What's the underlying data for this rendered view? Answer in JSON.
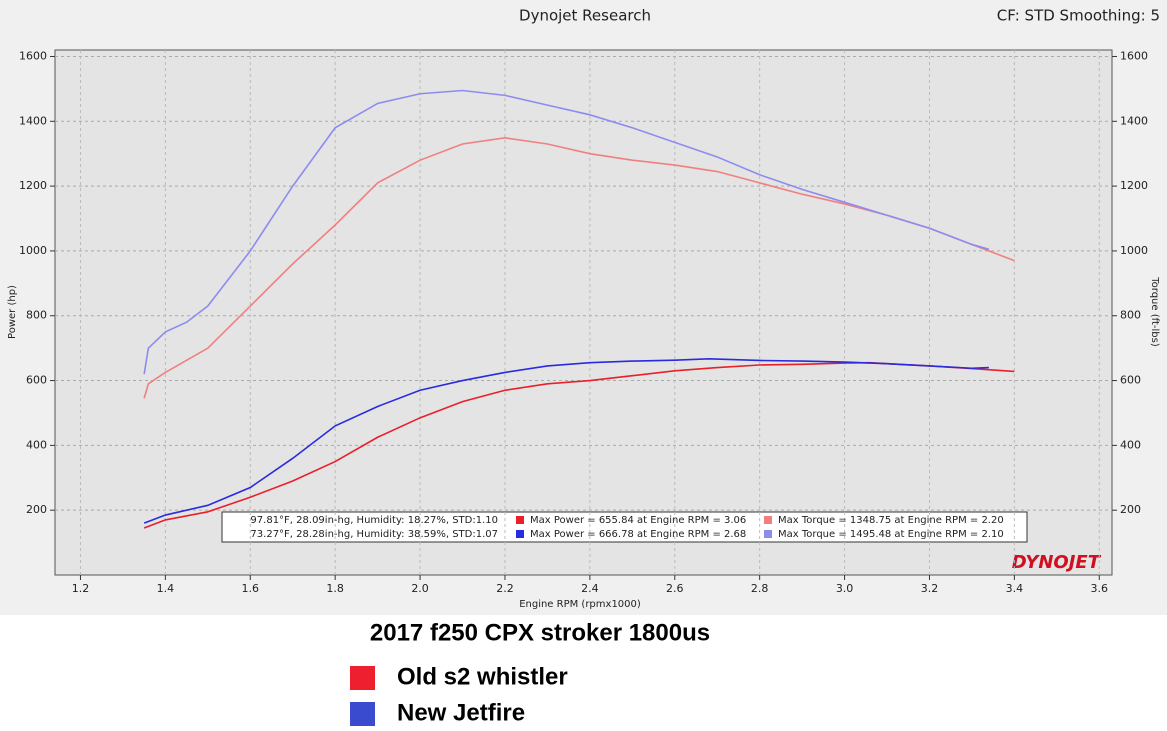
{
  "chart_data": {
    "type": "line",
    "title": "Dynojet Research",
    "subtitle": "CF: STD Smoothing: 5",
    "xlabel": "Engine RPM (rpmx1000)",
    "ylabel": "Power (hp)",
    "y2label": "Torque (ft-lbs)",
    "logo": "DYNOJET",
    "xlim": [
      1.14,
      3.63
    ],
    "xticks": [
      1.2,
      1.4,
      1.6,
      1.8,
      {
        "value": 2,
        "label": "2.0"
      },
      2.2,
      2.4,
      2.6,
      2.8,
      {
        "value": 3,
        "label": "3.0"
      },
      3.2,
      3.4,
      3.6
    ],
    "ylim": [
      0,
      1620
    ],
    "yticks": [
      200,
      400,
      600,
      800,
      1000,
      1200,
      1400,
      1600
    ],
    "y2lim": [
      0,
      1620
    ],
    "y2ticks": [
      200,
      400,
      600,
      800,
      1000,
      1200,
      1400,
      1600
    ],
    "grid": true,
    "series": [
      {
        "color": "#e8202a",
        "x": [
          1.35,
          1.4,
          1.5,
          1.6,
          1.7,
          1.8,
          1.9,
          2.0,
          2.1,
          2.2,
          2.3,
          2.4,
          2.5,
          2.6,
          2.7,
          2.8,
          2.9,
          3.0,
          3.06,
          3.1,
          3.2,
          3.3,
          3.4
        ],
        "values": [
          145,
          170,
          195,
          240,
          290,
          350,
          425,
          485,
          535,
          570,
          590,
          600,
          615,
          630,
          640,
          648,
          650,
          654,
          655,
          652,
          645,
          637,
          628
        ]
      },
      {
        "color": "#2a2ae0",
        "x": [
          1.35,
          1.4,
          1.5,
          1.6,
          1.7,
          1.8,
          1.9,
          2.0,
          2.1,
          2.2,
          2.3,
          2.4,
          2.5,
          2.6,
          2.68,
          2.8,
          2.9,
          3.0,
          3.1,
          3.2,
          3.3,
          3.34
        ],
        "values": [
          160,
          185,
          215,
          270,
          360,
          460,
          520,
          570,
          600,
          625,
          645,
          655,
          660,
          663,
          667,
          662,
          660,
          657,
          652,
          645,
          638,
          640
        ]
      },
      {
        "color": "#f08080",
        "axis": "y2",
        "x": [
          1.35,
          1.36,
          1.4,
          1.5,
          1.6,
          1.7,
          1.8,
          1.9,
          2.0,
          2.1,
          2.2,
          2.3,
          2.4,
          2.5,
          2.6,
          2.7,
          2.8,
          2.9,
          3.0,
          3.1,
          3.2,
          3.3,
          3.4
        ],
        "values": [
          545,
          590,
          625,
          700,
          830,
          960,
          1080,
          1210,
          1280,
          1330,
          1349,
          1330,
          1300,
          1280,
          1265,
          1245,
          1210,
          1175,
          1145,
          1110,
          1070,
          1020,
          970
        ]
      },
      {
        "color": "#8c8cf0",
        "axis": "y2",
        "x": [
          1.35,
          1.36,
          1.4,
          1.45,
          1.5,
          1.6,
          1.7,
          1.8,
          1.9,
          2.0,
          2.1,
          2.2,
          2.3,
          2.4,
          2.5,
          2.6,
          2.7,
          2.8,
          2.9,
          3.0,
          3.1,
          3.2,
          3.3,
          3.34
        ],
        "values": [
          620,
          700,
          750,
          780,
          830,
          1000,
          1200,
          1380,
          1455,
          1485,
          1495,
          1480,
          1450,
          1420,
          1380,
          1335,
          1290,
          1235,
          1190,
          1150,
          1110,
          1070,
          1020,
          1005
        ]
      }
    ],
    "runs": [
      {
        "conditions": "97.81°F, 28.09in-hg, Humidity: 18.27%, STD:1.10",
        "power": "Max Power = 655.84 at Engine RPM = 3.06",
        "torque": "Max Torque = 1348.75 at Engine RPM = 2.20"
      },
      {
        "conditions": "73.27°F, 28.28in-hg, Humidity: 38.59%, STD:1.07",
        "power": "Max Power = 666.78 at Engine RPM = 2.68",
        "torque": "Max Torque = 1495.48 at Engine RPM = 2.10"
      }
    ]
  },
  "caption": {
    "title": "2017 f250 CPX stroker 1800us",
    "entries": [
      {
        "label": "Old s2 whistler",
        "color": "#ee2030"
      },
      {
        "label": "New Jetfire",
        "color": "#3b4bd0"
      }
    ]
  }
}
